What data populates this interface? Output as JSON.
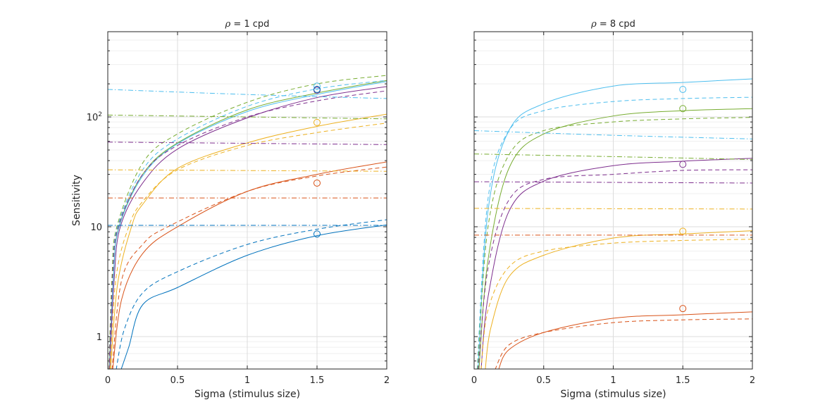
{
  "colors": {
    "blue": "#0072BD",
    "orange": "#D95319",
    "yellow": "#EDB120",
    "purple": "#7E2F8E",
    "green": "#77AC30",
    "cyan": "#4DBEEE",
    "grid": "#dcdcdc",
    "minorgrid": "#efefef",
    "axis": "#262626"
  },
  "chart_data": [
    {
      "type": "line",
      "title_symbol": "ρ",
      "title_rest": " = 1 cpd",
      "xlabel": "Sigma (stimulus size)",
      "ylabel": "Sensitivity",
      "xlim": [
        0,
        2
      ],
      "ylim": [
        0.507,
        597
      ],
      "yscale": "log",
      "grid": true,
      "xticks": [
        "0",
        "0.5",
        "1",
        "1.5",
        "2"
      ],
      "yticks": [
        {
          "value": 1,
          "label": "1"
        },
        {
          "value": 10,
          "label": "10"
        },
        {
          "value": 100,
          "label": "10",
          "exp": "2"
        }
      ],
      "series": [
        {
          "color": "green",
          "style": "solid",
          "points": [
            [
              0.01,
              0.5
            ],
            [
              0.04,
              3.5
            ],
            [
              0.08,
              10
            ],
            [
              0.25,
              30
            ],
            [
              0.5,
              58
            ],
            [
              1,
              116
            ],
            [
              1.5,
              165
            ],
            [
              2,
              215
            ]
          ]
        },
        {
          "color": "cyan",
          "style": "solid",
          "points": [
            [
              0.012,
              0.5
            ],
            [
              0.04,
              3.4
            ],
            [
              0.08,
              9.8
            ],
            [
              0.25,
              29
            ],
            [
              0.5,
              57
            ],
            [
              1,
              112
            ],
            [
              1.5,
              160
            ],
            [
              2,
              210
            ]
          ]
        },
        {
          "color": "purple",
          "style": "solid",
          "points": [
            [
              0.014,
              0.5
            ],
            [
              0.045,
              3.2
            ],
            [
              0.09,
              10
            ],
            [
              0.25,
              25
            ],
            [
              0.5,
              51
            ],
            [
              1,
              98
            ],
            [
              1.5,
              150
            ],
            [
              2,
              189
            ]
          ]
        },
        {
          "color": "yellow",
          "style": "solid",
          "points": [
            [
              0.02,
              0.5
            ],
            [
              0.07,
              3
            ],
            [
              0.17,
              10
            ],
            [
              0.25,
              16
            ],
            [
              0.5,
              34
            ],
            [
              1,
              58
            ],
            [
              1.5,
              82
            ],
            [
              2,
              106
            ]
          ]
        },
        {
          "color": "orange",
          "style": "solid",
          "points": [
            [
              0.035,
              0.5
            ],
            [
              0.1,
              2.2
            ],
            [
              0.25,
              5.7
            ],
            [
              0.5,
              10
            ],
            [
              1,
              21
            ],
            [
              1.5,
              30
            ],
            [
              2,
              39
            ]
          ]
        },
        {
          "color": "blue",
          "style": "solid",
          "points": [
            [
              0.095,
              0.5
            ],
            [
              0.15,
              0.8
            ],
            [
              0.25,
              1.95
            ],
            [
              0.5,
              2.8
            ],
            [
              1,
              5.5
            ],
            [
              1.5,
              8.3
            ],
            [
              2,
              10.4
            ]
          ]
        },
        {
          "color": "green",
          "style": "dashed",
          "points": [
            [
              0.008,
              0.5
            ],
            [
              0.03,
              3.5
            ],
            [
              0.065,
              10
            ],
            [
              0.25,
              38
            ],
            [
              0.5,
              70
            ],
            [
              1,
              136
            ],
            [
              1.5,
              200
            ],
            [
              2,
              239
            ]
          ]
        },
        {
          "color": "cyan",
          "style": "dashed",
          "points": [
            [
              0.01,
              0.5
            ],
            [
              0.035,
              3.5
            ],
            [
              0.07,
              10
            ],
            [
              0.25,
              33
            ],
            [
              0.5,
              63
            ],
            [
              1,
              125
            ],
            [
              1.5,
              180
            ],
            [
              2,
              215
            ]
          ]
        },
        {
          "color": "purple",
          "style": "dashed",
          "points": [
            [
              0.01,
              0.5
            ],
            [
              0.035,
              3.5
            ],
            [
              0.075,
              10
            ],
            [
              0.25,
              30
            ],
            [
              0.5,
              55
            ],
            [
              1,
              100
            ],
            [
              1.5,
              140
            ],
            [
              2,
              173
            ]
          ]
        },
        {
          "color": "yellow",
          "style": "dashed",
          "points": [
            [
              0.015,
              0.5
            ],
            [
              0.06,
              3.5
            ],
            [
              0.15,
              10
            ],
            [
              0.25,
              17
            ],
            [
              0.5,
              33
            ],
            [
              1,
              55
            ],
            [
              1.5,
              72
            ],
            [
              2,
              88
            ]
          ]
        },
        {
          "color": "orange",
          "style": "dashed",
          "points": [
            [
              0.03,
              0.5
            ],
            [
              0.1,
              3.3
            ],
            [
              0.25,
              6.9
            ],
            [
              0.43,
              10
            ],
            [
              1,
              21
            ],
            [
              1.5,
              29
            ],
            [
              2,
              35
            ]
          ]
        },
        {
          "color": "blue",
          "style": "dashed",
          "points": [
            [
              0.06,
              0.5
            ],
            [
              0.12,
              1.18
            ],
            [
              0.25,
              2.5
            ],
            [
              0.5,
              3.9
            ],
            [
              1,
              6.9
            ],
            [
              1.5,
              9.5
            ],
            [
              2,
              11.6
            ]
          ]
        },
        {
          "color": "cyan",
          "style": "dashdot",
          "points": [
            [
              0,
              178
            ],
            [
              1,
              160
            ],
            [
              2,
              147
            ]
          ]
        },
        {
          "color": "green",
          "style": "dashdot",
          "points": [
            [
              0,
              104
            ],
            [
              1,
              100
            ],
            [
              2,
              96
            ]
          ]
        },
        {
          "color": "purple",
          "style": "dashdot",
          "points": [
            [
              0,
              59
            ],
            [
              1,
              57.5
            ],
            [
              2,
              56
            ]
          ]
        },
        {
          "color": "yellow",
          "style": "dashdot",
          "points": [
            [
              0,
              33
            ],
            [
              1,
              32.5
            ],
            [
              2,
              32
            ]
          ]
        },
        {
          "color": "orange",
          "style": "dashdot",
          "points": [
            [
              0,
              18.3
            ],
            [
              2,
              18.3
            ]
          ]
        },
        {
          "color": "blue",
          "style": "dashdot",
          "points": [
            [
              0,
              10.3
            ],
            [
              2,
              10.3
            ]
          ]
        }
      ],
      "markers": [
        {
          "x": 1.5,
          "y": 191,
          "color": "cyan"
        },
        {
          "x": 1.5,
          "y": 175,
          "color": "purple"
        },
        {
          "x": 1.5,
          "y": 178,
          "color": "blue"
        },
        {
          "x": 1.5,
          "y": 89,
          "color": "yellow"
        },
        {
          "x": 1.5,
          "y": 25,
          "color": "orange"
        },
        {
          "x": 1.5,
          "y": 8.6,
          "color": "blue"
        }
      ]
    },
    {
      "type": "line",
      "title_symbol": "ρ",
      "title_rest": " = 8 cpd",
      "xlabel": "Sigma (stimulus size)",
      "ylabel": "",
      "xlim": [
        0,
        2
      ],
      "ylim": [
        0.507,
        597
      ],
      "yscale": "log",
      "grid": true,
      "xticks": [
        "0",
        "0.5",
        "1",
        "1.5",
        "2"
      ],
      "yticks": [],
      "series": [
        {
          "color": "cyan",
          "style": "solid",
          "points": [
            [
              0.028,
              0.5
            ],
            [
              0.1,
              14
            ],
            [
              0.25,
              75
            ],
            [
              0.5,
              132
            ],
            [
              1,
              191
            ],
            [
              1.5,
              206
            ],
            [
              2,
              222
            ]
          ]
        },
        {
          "color": "green",
          "style": "solid",
          "points": [
            [
              0.035,
              0.5
            ],
            [
              0.1,
              5
            ],
            [
              0.25,
              34
            ],
            [
              0.5,
              70
            ],
            [
              1,
              102
            ],
            [
              1.5,
              114
            ],
            [
              2,
              119
            ]
          ]
        },
        {
          "color": "purple",
          "style": "solid",
          "points": [
            [
              0.05,
              0.5
            ],
            [
              0.1,
              2.3
            ],
            [
              0.25,
              13.8
            ],
            [
              0.5,
              26
            ],
            [
              1,
              36
            ],
            [
              1.5,
              39.5
            ],
            [
              2,
              42
            ]
          ]
        },
        {
          "color": "yellow",
          "style": "solid",
          "points": [
            [
              0.08,
              0.5
            ],
            [
              0.12,
              1.2
            ],
            [
              0.25,
              3.5
            ],
            [
              0.5,
              5.5
            ],
            [
              1,
              7.9
            ],
            [
              1.5,
              8.6
            ],
            [
              2,
              9.2
            ]
          ]
        },
        {
          "color": "orange",
          "style": "solid",
          "points": [
            [
              0.175,
              0.5
            ],
            [
              0.25,
              0.76
            ],
            [
              0.5,
              1.09
            ],
            [
              1,
              1.47
            ],
            [
              1.5,
              1.58
            ],
            [
              2,
              1.68
            ]
          ]
        },
        {
          "color": "cyan",
          "style": "dashed",
          "points": [
            [
              0.022,
              0.5
            ],
            [
              0.1,
              18
            ],
            [
              0.25,
              75
            ],
            [
              0.5,
              114
            ],
            [
              1,
              138
            ],
            [
              1.5,
              147
            ],
            [
              2,
              151
            ]
          ]
        },
        {
          "color": "green",
          "style": "dashed",
          "points": [
            [
              0.025,
              0.5
            ],
            [
              0.1,
              10
            ],
            [
              0.25,
              45
            ],
            [
              0.5,
              75
            ],
            [
              1,
              90
            ],
            [
              1.5,
              96
            ],
            [
              2,
              99
            ]
          ]
        },
        {
          "color": "purple",
          "style": "dashed",
          "points": [
            [
              0.03,
              0.5
            ],
            [
              0.1,
              4.2
            ],
            [
              0.25,
              17.5
            ],
            [
              0.5,
              27
            ],
            [
              1,
              30
            ],
            [
              1.5,
              32.6
            ],
            [
              2,
              33
            ]
          ]
        },
        {
          "color": "yellow",
          "style": "dashed",
          "points": [
            [
              0.05,
              0.5
            ],
            [
              0.1,
              1.75
            ],
            [
              0.25,
              4.3
            ],
            [
              0.5,
              6
            ],
            [
              1,
              7.1
            ],
            [
              1.5,
              7.5
            ],
            [
              2,
              7.7
            ]
          ]
        },
        {
          "color": "orange",
          "style": "dashed",
          "points": [
            [
              0.15,
              0.5
            ],
            [
              0.25,
              0.84
            ],
            [
              0.5,
              1.09
            ],
            [
              1,
              1.34
            ],
            [
              1.5,
              1.42
            ],
            [
              2,
              1.45
            ]
          ]
        },
        {
          "color": "cyan",
          "style": "dashdot",
          "points": [
            [
              0,
              75
            ],
            [
              1,
              68
            ],
            [
              2,
              63
            ]
          ]
        },
        {
          "color": "green",
          "style": "dashdot",
          "points": [
            [
              0,
              46
            ],
            [
              1,
              43.5
            ],
            [
              2,
              41
            ]
          ]
        },
        {
          "color": "purple",
          "style": "dashdot",
          "points": [
            [
              0,
              25.7
            ],
            [
              2,
              25
            ]
          ]
        },
        {
          "color": "yellow",
          "style": "dashdot",
          "points": [
            [
              0,
              14.7
            ],
            [
              2,
              14.5
            ]
          ]
        },
        {
          "color": "orange",
          "style": "dashdot",
          "points": [
            [
              0,
              8.4
            ],
            [
              2,
              8.4
            ]
          ]
        }
      ],
      "markers": [
        {
          "x": 1.5,
          "y": 178,
          "color": "cyan"
        },
        {
          "x": 1.5,
          "y": 119,
          "color": "green"
        },
        {
          "x": 1.5,
          "y": 37,
          "color": "purple"
        },
        {
          "x": 1.5,
          "y": 9.1,
          "color": "yellow"
        },
        {
          "x": 1.5,
          "y": 1.8,
          "color": "orange"
        }
      ]
    }
  ]
}
